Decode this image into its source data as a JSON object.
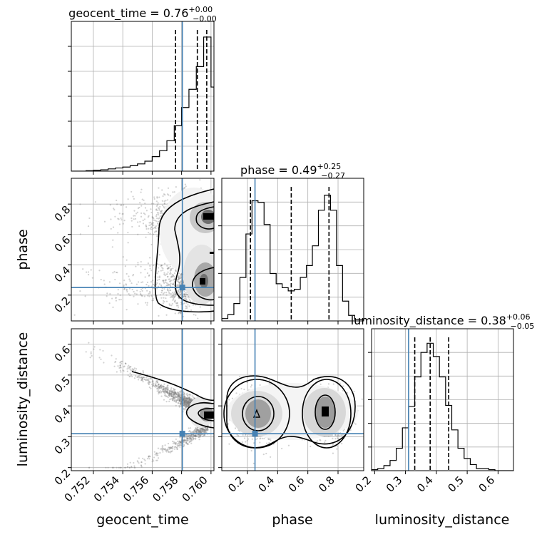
{
  "chart_data": {
    "type": "scatter",
    "kind": "corner-plot",
    "parameters": [
      {
        "id": "geocent_time",
        "label": "geocent_time",
        "range": [
          0.7505,
          0.7602
        ],
        "ticks": [
          0.752,
          0.754,
          0.756,
          0.758,
          0.76
        ],
        "tick_labels": [
          "0.752",
          "0.754",
          "0.756",
          "0.758",
          "0.760"
        ],
        "truth": 0.75805,
        "title_value": "0.76",
        "title_plus": "+0.00",
        "title_minus": "−0.00",
        "quantiles": [
          0.75759,
          0.75907,
          0.75971
        ]
      },
      {
        "id": "phase",
        "label": "phase",
        "range": [
          0.03,
          0.97
        ],
        "ticks": [
          0.2,
          0.4,
          0.6,
          0.8
        ],
        "tick_labels": [
          "0.2",
          "0.4",
          "0.6",
          "0.8"
        ],
        "truth": 0.25,
        "title_value": "0.49",
        "title_plus": "+0.25",
        "title_minus": "−0.27",
        "quantiles": [
          0.22,
          0.49,
          0.74
        ]
      },
      {
        "id": "luminosity_distance",
        "label": "luminosity_distance",
        "range": [
          0.19,
          0.65
        ],
        "ticks": [
          0.2,
          0.3,
          0.4,
          0.5,
          0.6
        ],
        "tick_labels": [
          "0.2",
          "0.3",
          "0.4",
          "0.5",
          "0.6"
        ],
        "truth": 0.31,
        "title_value": "0.38",
        "title_plus": "+0.06",
        "title_minus": "−0.05",
        "quantiles": [
          0.33,
          0.38,
          0.44
        ]
      }
    ],
    "histograms": [
      {
        "param": "geocent_time",
        "bins": [
          0.7505,
          0.751,
          0.7515,
          0.752,
          0.7525,
          0.753,
          0.7535,
          0.754,
          0.7545,
          0.755,
          0.7555,
          0.756,
          0.7565,
          0.757,
          0.7575,
          0.758,
          0.7585,
          0.759,
          0.7595,
          0.76,
          0.7602
        ],
        "counts": [
          0,
          0,
          1,
          2,
          3,
          5,
          7,
          9,
          12,
          16,
          22,
          32,
          45,
          67,
          100,
          140,
          180,
          230,
          295,
          185
        ],
        "ymax": 320
      },
      {
        "param": "phase",
        "bins": [
          0.03,
          0.07,
          0.11,
          0.15,
          0.19,
          0.23,
          0.27,
          0.31,
          0.35,
          0.39,
          0.43,
          0.47,
          0.51,
          0.55,
          0.59,
          0.63,
          0.67,
          0.71,
          0.75,
          0.79,
          0.83,
          0.87,
          0.91,
          0.97
        ],
        "counts": [
          3,
          8,
          22,
          55,
          110,
          152,
          150,
          122,
          60,
          47,
          42,
          38,
          40,
          55,
          70,
          95,
          140,
          159,
          140,
          70,
          25,
          7,
          2
        ],
        "ymax": 175
      },
      {
        "param": "luminosity_distance",
        "bins": [
          0.19,
          0.21,
          0.23,
          0.25,
          0.27,
          0.29,
          0.31,
          0.33,
          0.35,
          0.37,
          0.39,
          0.41,
          0.43,
          0.45,
          0.47,
          0.49,
          0.51,
          0.53,
          0.55,
          0.57,
          0.59,
          0.61,
          0.65
        ],
        "counts": [
          1,
          2,
          5,
          10,
          22,
          42,
          63,
          92,
          116,
          125,
          112,
          92,
          64,
          40,
          22,
          12,
          6,
          2,
          2,
          1,
          0,
          0
        ],
        "ymax": 135
      }
    ],
    "joint_panels": [
      {
        "x": "geocent_time",
        "y": "phase"
      },
      {
        "x": "geocent_time",
        "y": "luminosity_distance"
      },
      {
        "x": "phase",
        "y": "luminosity_distance"
      }
    ],
    "quantile_style": "dashed",
    "truth_color": "#4682b4",
    "hist_color": "#000000",
    "sample_color": "#7f7f7f",
    "grid": true
  }
}
